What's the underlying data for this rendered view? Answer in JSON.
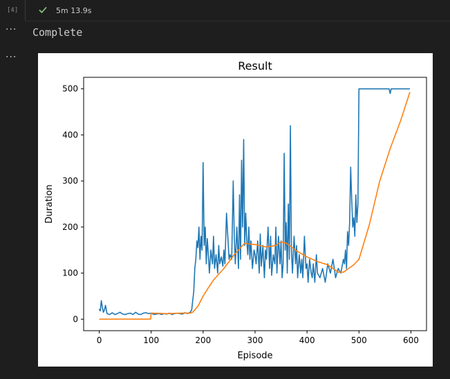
{
  "cell": {
    "execution_count": "[4]",
    "status_icon": "check-icon",
    "status_color": "#89d185",
    "duration": "5m 13.9s"
  },
  "output": {
    "text": "Complete"
  },
  "chart_data": {
    "type": "line",
    "title": "Result",
    "xlabel": "Episode",
    "ylabel": "Duration",
    "xlim": [
      -30,
      630
    ],
    "ylim": [
      -25,
      525
    ],
    "xticks": [
      0,
      100,
      200,
      300,
      400,
      500,
      600
    ],
    "yticks": [
      0,
      100,
      200,
      300,
      400,
      500
    ],
    "grid": false,
    "series": [
      {
        "color": "#1f77b4",
        "x": [
          0,
          2,
          4,
          6,
          8,
          10,
          12,
          15,
          20,
          25,
          30,
          35,
          40,
          45,
          50,
          55,
          60,
          65,
          70,
          75,
          80,
          85,
          90,
          95,
          100,
          105,
          110,
          115,
          120,
          125,
          130,
          135,
          140,
          145,
          150,
          155,
          160,
          165,
          170,
          175,
          178,
          180,
          182,
          184,
          186,
          188,
          190,
          192,
          194,
          196,
          198,
          200,
          202,
          204,
          206,
          208,
          210,
          212,
          215,
          218,
          220,
          222,
          225,
          228,
          230,
          232,
          235,
          238,
          240,
          242,
          245,
          248,
          250,
          252,
          255,
          258,
          260,
          262,
          265,
          268,
          270,
          272,
          274,
          276,
          278,
          280,
          282,
          284,
          286,
          288,
          290,
          292,
          295,
          298,
          300,
          302,
          305,
          308,
          310,
          312,
          315,
          318,
          320,
          322,
          325,
          328,
          330,
          332,
          335,
          338,
          340,
          342,
          345,
          348,
          350,
          352,
          354,
          356,
          358,
          360,
          362,
          364,
          366,
          368,
          370,
          372,
          375,
          378,
          380,
          382,
          385,
          388,
          390,
          392,
          395,
          398,
          400,
          402,
          405,
          408,
          410,
          412,
          415,
          418,
          420,
          425,
          430,
          435,
          440,
          445,
          450,
          455,
          460,
          465,
          470,
          472,
          474,
          476,
          478,
          480,
          482,
          484,
          486,
          488,
          490,
          492,
          494,
          496,
          498,
          500,
          502,
          505,
          510,
          520,
          530,
          540,
          550,
          558,
          560,
          562,
          565,
          570,
          580,
          590,
          598
        ],
        "y": [
          22,
          18,
          40,
          25,
          15,
          20,
          30,
          12,
          10,
          14,
          10,
          12,
          15,
          11,
          10,
          12,
          13,
          10,
          15,
          11,
          10,
          13,
          14,
          12,
          13,
          10,
          11,
          12,
          10,
          12,
          11,
          13,
          10,
          12,
          13,
          12,
          11,
          14,
          12,
          15,
          20,
          40,
          60,
          110,
          130,
          170,
          155,
          200,
          130,
          180,
          150,
          340,
          160,
          200,
          120,
          175,
          140,
          100,
          150,
          120,
          180,
          110,
          140,
          100,
          160,
          120,
          135,
          115,
          150,
          120,
          230,
          170,
          130,
          140,
          130,
          300,
          180,
          120,
          200,
          110,
          270,
          130,
          345,
          200,
          390,
          160,
          230,
          170,
          140,
          200,
          130,
          170,
          110,
          150,
          140,
          120,
          170,
          100,
          185,
          115,
          160,
          90,
          150,
          130,
          200,
          110,
          180,
          95,
          140,
          120,
          200,
          100,
          180,
          120,
          170,
          90,
          120,
          360,
          150,
          210,
          100,
          250,
          130,
          420,
          150,
          100,
          180,
          120,
          160,
          90,
          140,
          100,
          130,
          90,
          180,
          110,
          120,
          80,
          130,
          100,
          90,
          120,
          80,
          140,
          100,
          90,
          110,
          80,
          120,
          100,
          130,
          90,
          110,
          100,
          130,
          120,
          150,
          110,
          190,
          160,
          210,
          330,
          260,
          200,
          220,
          180,
          270,
          210,
          250,
          500,
          500,
          500,
          500,
          500,
          500,
          500,
          500,
          500,
          490,
          500,
          500,
          500,
          500,
          500,
          500
        ]
      },
      {
        "color": "#ff7f0e",
        "x": [
          0,
          99,
          100,
          130,
          160,
          175,
          180,
          190,
          200,
          210,
          220,
          240,
          260,
          280,
          290,
          300,
          320,
          330,
          340,
          350,
          360,
          370,
          380,
          400,
          420,
          440,
          450,
          460,
          470,
          480,
          490,
          500,
          520,
          540,
          560,
          580,
          598
        ],
        "y": [
          0,
          0,
          13,
          12,
          13,
          13,
          15,
          28,
          50,
          68,
          85,
          110,
          140,
          165,
          163,
          162,
          157,
          158,
          160,
          168,
          165,
          157,
          148,
          135,
          125,
          118,
          110,
          102,
          102,
          110,
          118,
          130,
          205,
          300,
          370,
          430,
          493
        ]
      }
    ]
  }
}
